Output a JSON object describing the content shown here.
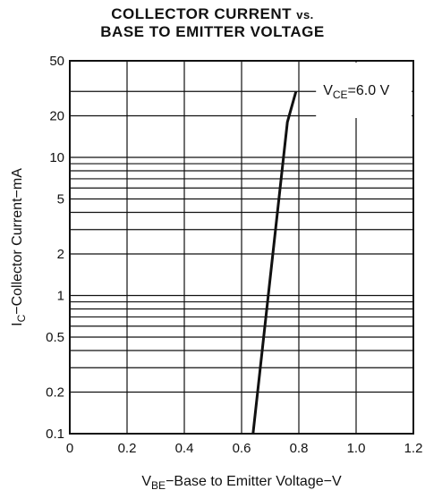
{
  "chart_data": {
    "type": "line",
    "title_line1": "COLLECTOR CURRENT",
    "title_vs": "vs.",
    "title_line2": "BASE TO EMITTER VOLTAGE",
    "xlabel_sym": "V",
    "xlabel_sub": "BE",
    "xlabel_text": "−Base to Emitter Voltage−V",
    "ylabel_sym": "I",
    "ylabel_sub": "C",
    "ylabel_text": "−Collector Current−mA",
    "annotation_sym": "V",
    "annotation_sub": "CE",
    "annotation_val": "=6.0 V",
    "xlim": [
      0,
      1.2
    ],
    "ylim": [
      0.1,
      50
    ],
    "yscale": "log",
    "grid": true,
    "x_ticks": [
      0,
      0.2,
      0.4,
      0.6,
      0.8,
      1.0,
      1.2
    ],
    "x_tick_labels": [
      "0",
      "0.2",
      "0.4",
      "0.6",
      "0.8",
      "1.0",
      "1.2"
    ],
    "y_ticks": [
      0.1,
      0.2,
      0.5,
      1,
      2,
      5,
      10,
      20,
      50
    ],
    "y_tick_labels": [
      "0.1",
      "0.2",
      "0.5",
      "1",
      "2",
      "5",
      "10",
      "20",
      "50"
    ],
    "y_minor_gridlines": [
      0.3,
      0.4,
      0.6,
      0.7,
      0.8,
      0.9,
      3,
      4,
      6,
      7,
      8,
      9,
      30
    ],
    "series": [
      {
        "x": [
          0.64,
          0.76,
          0.79
        ],
        "y": [
          0.1,
          18,
          30
        ]
      }
    ]
  }
}
